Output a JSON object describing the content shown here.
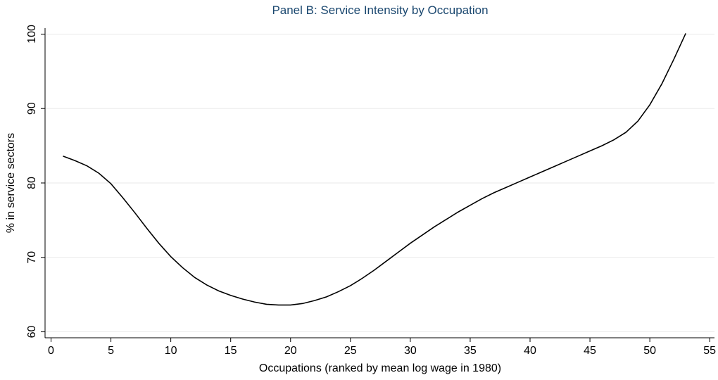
{
  "chart_data": {
    "type": "line",
    "title": "Panel B: Service Intensity by Occupation",
    "x_label": "Occupations (ranked by mean log wage in 1980)",
    "y_label": "% in service sectors",
    "x": [
      1,
      2,
      3,
      4,
      5,
      6,
      7,
      8,
      9,
      10,
      11,
      12,
      13,
      14,
      15,
      16,
      17,
      18,
      19,
      20,
      21,
      22,
      23,
      24,
      25,
      26,
      27,
      28,
      29,
      30,
      31,
      32,
      33,
      34,
      35,
      36,
      37,
      38,
      39,
      40,
      41,
      42,
      43,
      44,
      45,
      46,
      47,
      48,
      49,
      50,
      51,
      52,
      53
    ],
    "series": [
      {
        "color": "#000000",
        "values": [
          83.6,
          83.0,
          82.3,
          81.3,
          79.9,
          78.0,
          76.0,
          73.9,
          71.9,
          70.1,
          68.6,
          67.3,
          66.3,
          65.5,
          64.9,
          64.4,
          64.0,
          63.7,
          63.6,
          63.6,
          63.8,
          64.2,
          64.7,
          65.4,
          66.2,
          67.2,
          68.3,
          69.5,
          70.7,
          71.9,
          73.0,
          74.1,
          75.1,
          76.1,
          77.0,
          77.9,
          78.7,
          79.4,
          80.1,
          80.8,
          81.5,
          82.2,
          82.9,
          83.6,
          84.3,
          85.0,
          85.8,
          86.8,
          88.3,
          90.5,
          93.3,
          96.6,
          100.1
        ]
      }
    ],
    "xlim": [
      -0.5,
      55.4
    ],
    "ylim": [
      59.2,
      100.8
    ],
    "xticks": [
      0,
      5,
      10,
      15,
      20,
      25,
      30,
      35,
      40,
      45,
      50,
      55
    ],
    "yticks": [
      60,
      70,
      80,
      90,
      100
    ],
    "grid": true,
    "title_color": "#1a476f"
  }
}
